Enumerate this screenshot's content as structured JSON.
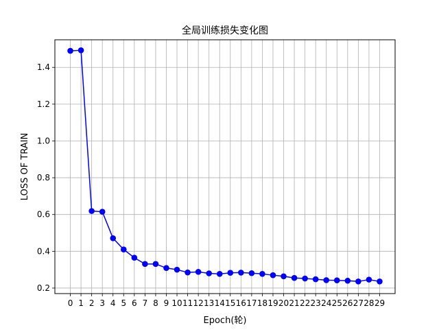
{
  "chart_data": {
    "type": "line",
    "title": "全局训练损失变化图",
    "xlabel": "Epoch(轮)",
    "ylabel": "LOSS OF TRAIN",
    "xlim": [
      -1.45,
      30.45
    ],
    "ylim": [
      0.17,
      1.55
    ],
    "x": [
      0,
      1,
      2,
      3,
      4,
      5,
      6,
      7,
      8,
      9,
      10,
      11,
      12,
      13,
      14,
      15,
      16,
      17,
      18,
      19,
      20,
      21,
      22,
      23,
      24,
      25,
      26,
      27,
      28,
      29
    ],
    "x_tick_labels": [
      "0",
      "1",
      "2",
      "3",
      "4",
      "5",
      "6",
      "7",
      "8",
      "9",
      "10",
      "11",
      "12",
      "13",
      "14",
      "15",
      "16",
      "17",
      "18",
      "19",
      "20",
      "21",
      "22",
      "23",
      "24",
      "25",
      "26",
      "27",
      "28",
      "29"
    ],
    "y_ticks": [
      0.2,
      0.4,
      0.6,
      0.8,
      1.0,
      1.2,
      1.4
    ],
    "y_tick_labels": [
      "0.2",
      "0.4",
      "0.6",
      "0.8",
      "1.0",
      "1.2",
      "1.4"
    ],
    "grid": true,
    "series": [
      {
        "color": "#0000ff",
        "marker": "circle",
        "values": [
          1.49,
          1.493,
          0.619,
          0.615,
          0.471,
          0.41,
          0.365,
          0.331,
          0.331,
          0.309,
          0.3,
          0.285,
          0.288,
          0.28,
          0.277,
          0.283,
          0.284,
          0.281,
          0.277,
          0.27,
          0.264,
          0.255,
          0.252,
          0.248,
          0.243,
          0.242,
          0.24,
          0.236,
          0.246,
          0.236
        ]
      }
    ]
  }
}
